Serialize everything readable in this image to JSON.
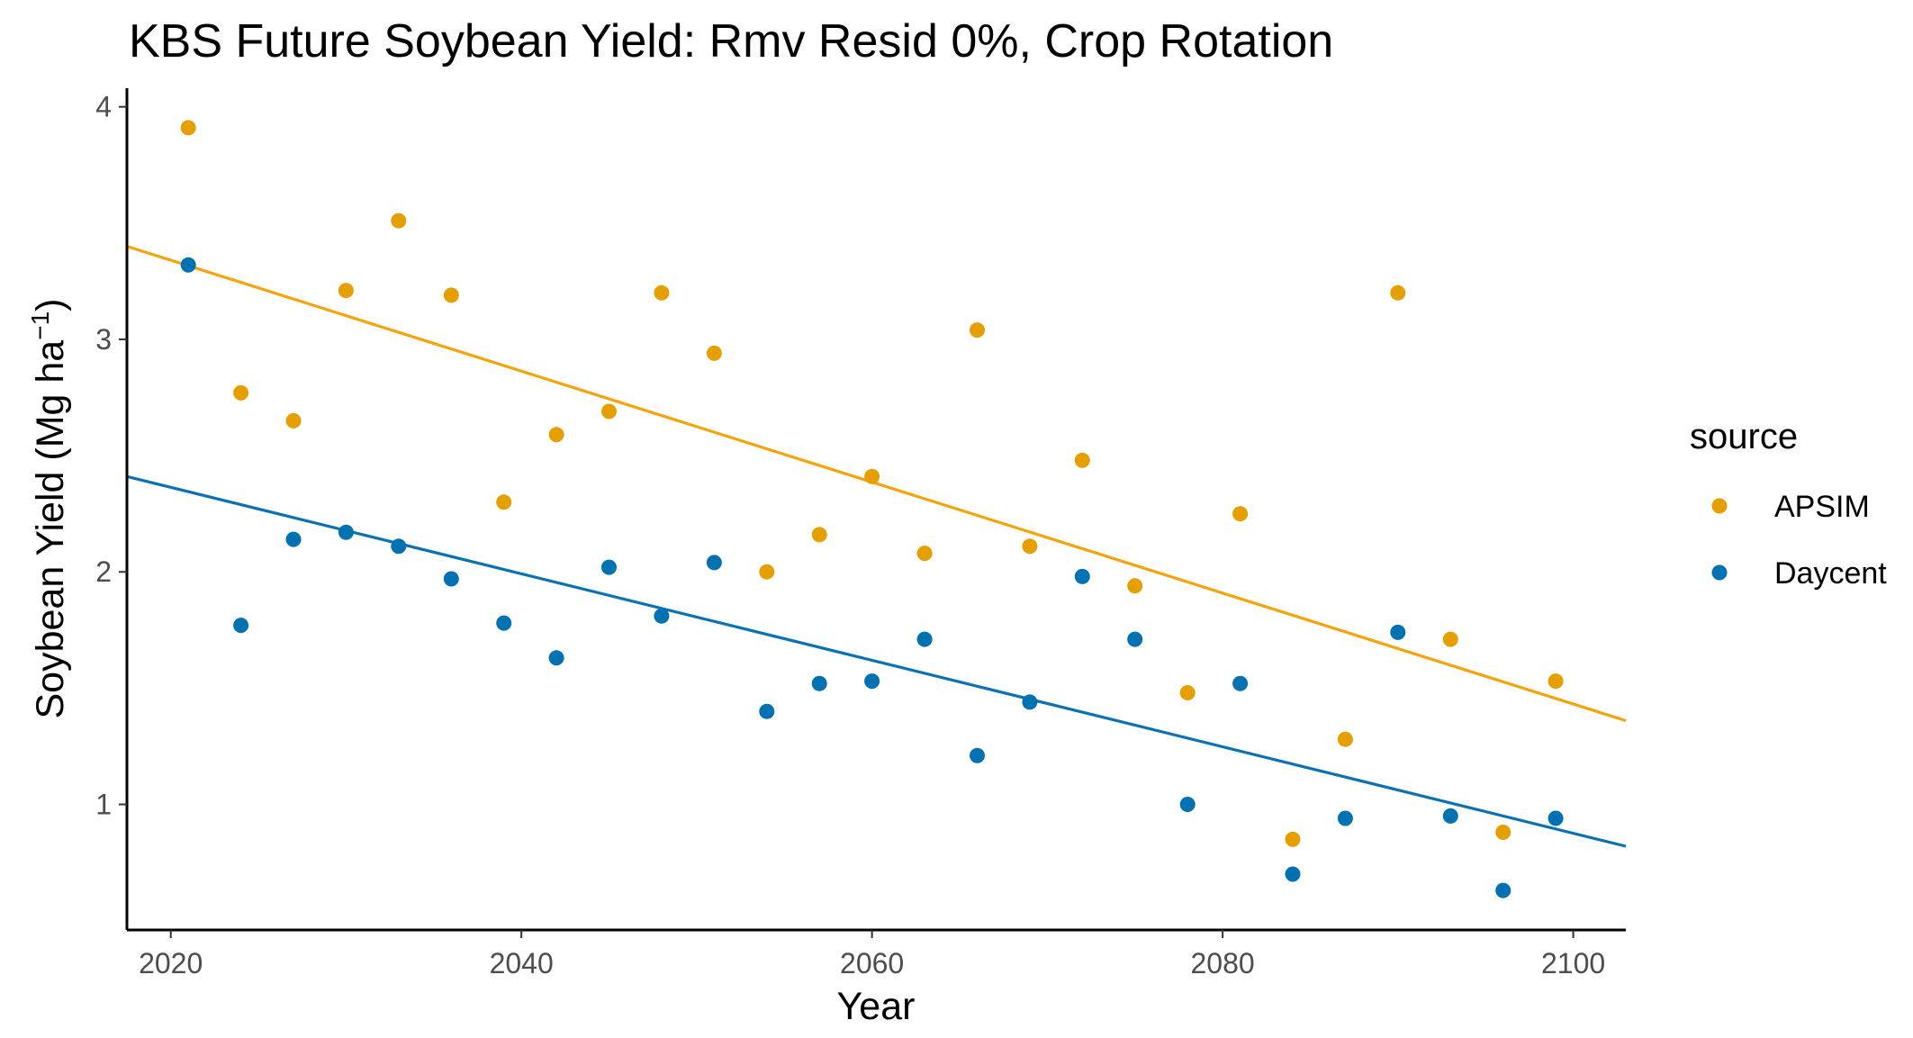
{
  "chart_data": {
    "type": "scatter",
    "title": "KBS Future Soybean Yield:  Rmv Resid 0%, Crop Rotation",
    "xlabel": "Year",
    "ylabel_main": "Soybean Yield (Mg ha",
    "ylabel_sup": "−1",
    "ylabel_close": ")",
    "xlim": [
      2017.5,
      2103
    ],
    "ylim": [
      0.46,
      4.08
    ],
    "x_ticks": [
      2020,
      2040,
      2060,
      2080,
      2100
    ],
    "y_ticks": [
      1,
      2,
      3,
      4
    ],
    "x_tick_labels": [
      "2020",
      "2040",
      "2060",
      "2080",
      "2100"
    ],
    "y_tick_labels": [
      "1",
      "2",
      "3",
      "4"
    ],
    "grid": false,
    "legend": {
      "title": "source",
      "position": "right"
    },
    "series": [
      {
        "name": "APSIM",
        "color": "#E69F00",
        "line_color": "#F5A30A",
        "trend": {
          "x": [
            2017.5,
            2103
          ],
          "y": [
            3.4,
            1.36
          ]
        },
        "points": [
          [
            2021,
            3.91
          ],
          [
            2024,
            2.77
          ],
          [
            2027,
            2.65
          ],
          [
            2030,
            3.21
          ],
          [
            2033,
            3.51
          ],
          [
            2036,
            3.19
          ],
          [
            2039,
            2.3
          ],
          [
            2042,
            2.59
          ],
          [
            2045,
            2.69
          ],
          [
            2048,
            3.2
          ],
          [
            2051,
            2.94
          ],
          [
            2054,
            2.0
          ],
          [
            2057,
            2.16
          ],
          [
            2060,
            2.41
          ],
          [
            2063,
            2.08
          ],
          [
            2066,
            3.04
          ],
          [
            2069,
            2.11
          ],
          [
            2072,
            2.48
          ],
          [
            2075,
            1.94
          ],
          [
            2078,
            1.48
          ],
          [
            2081,
            2.25
          ],
          [
            2084,
            0.85
          ],
          [
            2087,
            1.28
          ],
          [
            2090,
            3.2
          ],
          [
            2093,
            1.71
          ],
          [
            2096,
            0.88
          ],
          [
            2099,
            1.53
          ]
        ]
      },
      {
        "name": "Daycent",
        "color": "#0072B2",
        "line_color": "#0A72B2",
        "trend": {
          "x": [
            2017.5,
            2103
          ],
          "y": [
            2.41,
            0.82
          ]
        },
        "points": [
          [
            2021,
            3.32
          ],
          [
            2024,
            1.77
          ],
          [
            2027,
            2.14
          ],
          [
            2030,
            2.17
          ],
          [
            2033,
            2.11
          ],
          [
            2036,
            1.97
          ],
          [
            2039,
            1.78
          ],
          [
            2042,
            1.63
          ],
          [
            2045,
            2.02
          ],
          [
            2048,
            1.81
          ],
          [
            2051,
            2.04
          ],
          [
            2054,
            1.4
          ],
          [
            2057,
            1.52
          ],
          [
            2060,
            1.53
          ],
          [
            2063,
            1.71
          ],
          [
            2066,
            1.21
          ],
          [
            2069,
            1.44
          ],
          [
            2072,
            1.98
          ],
          [
            2075,
            1.71
          ],
          [
            2078,
            1.0
          ],
          [
            2081,
            1.52
          ],
          [
            2084,
            0.7
          ],
          [
            2087,
            0.94
          ],
          [
            2090,
            1.74
          ],
          [
            2093,
            0.95
          ],
          [
            2096,
            0.63
          ],
          [
            2099,
            0.94
          ]
        ]
      }
    ]
  }
}
